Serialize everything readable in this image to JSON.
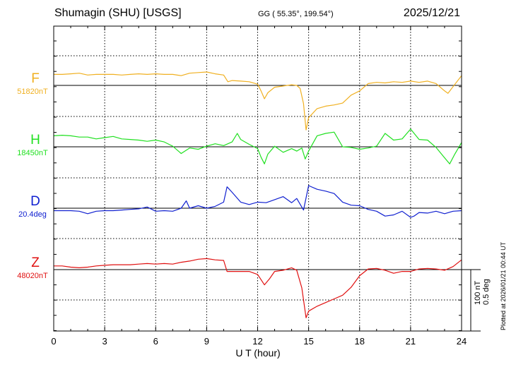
{
  "header": {
    "station": "Shumagin (SHU)  [USGS]",
    "coords": "GG ( 55.35°, 199.54°)",
    "date": "2025/12/21"
  },
  "side_text": {
    "scale_nt": "100 nT",
    "scale_deg": "0.5 deg",
    "plotted": "Plotted at 2026/01/21 00:44 UT"
  },
  "chart_data": {
    "type": "line",
    "title": "Shumagin (SHU)  [USGS]",
    "xlabel": "U T (hour)",
    "xlim": [
      0,
      24
    ],
    "xticks": [
      0,
      3,
      6,
      9,
      12,
      15,
      18,
      21,
      24
    ],
    "grid": true,
    "series": [
      {
        "name": "F",
        "baseline_label": "51820nT",
        "color": "#f0b020",
        "unit_offset": "nT",
        "x": [
          0,
          0.5,
          1,
          1.5,
          2,
          2.5,
          3,
          3.5,
          4,
          4.5,
          5,
          5.5,
          6,
          6.5,
          7,
          7.5,
          8,
          8.5,
          9,
          9.5,
          10,
          10.25,
          10.5,
          11,
          11.5,
          12,
          12.2,
          12.4,
          12.6,
          13,
          13.5,
          14,
          14.3,
          14.5,
          14.7,
          14.85,
          15,
          15.5,
          16,
          16.5,
          17,
          17.5,
          18,
          18.5,
          19,
          19.5,
          20,
          20.5,
          21,
          21.5,
          22,
          22.5,
          23,
          23.2,
          23.5,
          24
        ],
        "y": [
          18,
          18,
          19,
          20,
          17,
          18,
          18,
          18,
          17,
          18,
          19,
          18,
          19,
          18,
          18,
          16,
          20,
          21,
          22,
          19,
          17,
          6,
          8,
          7,
          6,
          2,
          -9,
          -22,
          -12,
          -3,
          -1,
          1,
          0,
          -5,
          -30,
          -73,
          -53,
          -38,
          -34,
          -32,
          -29,
          -16,
          -9,
          3,
          5,
          4,
          6,
          5,
          7,
          5,
          7,
          3,
          -9,
          -13,
          -2,
          16
        ]
      },
      {
        "name": "H",
        "baseline_label": "18450nT",
        "color": "#20e020",
        "unit_offset": "nT",
        "x": [
          0,
          0.5,
          1,
          1.5,
          2,
          2.5,
          3,
          3.5,
          4,
          4.5,
          5,
          5.5,
          6,
          6.5,
          7,
          7.5,
          8,
          8.5,
          9,
          9.5,
          10,
          10.5,
          10.8,
          11,
          11.5,
          12,
          12.2,
          12.4,
          12.6,
          13,
          13.5,
          14,
          14.3,
          14.6,
          14.8,
          15,
          15.5,
          16,
          16.5,
          17,
          17.5,
          18,
          18.5,
          19,
          19.5,
          20,
          20.5,
          21,
          21.5,
          22,
          22.5,
          23,
          23.3,
          23.6,
          24
        ],
        "y": [
          18,
          19,
          18,
          16,
          16,
          13,
          15,
          17,
          13,
          12,
          11,
          9,
          11,
          8,
          1,
          -11,
          -2,
          -4,
          1,
          5,
          2,
          8,
          22,
          12,
          4,
          -3,
          -17,
          -28,
          -12,
          1,
          -9,
          -3,
          -7,
          -2,
          -20,
          -7,
          18,
          22,
          24,
          0,
          -1,
          -4,
          -2,
          1,
          22,
          11,
          13,
          29,
          12,
          11,
          -1,
          -18,
          -28,
          -12,
          7
        ]
      },
      {
        "name": "D",
        "baseline_label": "20.4deg",
        "color": "#1020d0",
        "unit_offset": "nT-equivalent",
        "x": [
          0,
          0.5,
          1,
          1.5,
          2,
          2.5,
          3,
          3.5,
          4,
          4.5,
          5,
          5.5,
          6,
          6.5,
          7,
          7.5,
          7.8,
          8,
          8.5,
          9,
          9.5,
          10,
          10.2,
          10.5,
          11,
          11.5,
          12,
          12.5,
          13,
          13.5,
          14,
          14.3,
          14.7,
          15,
          15.5,
          16,
          16.5,
          17,
          17.5,
          18,
          18.5,
          19,
          19.5,
          20,
          20.5,
          21,
          21.2,
          21.5,
          22,
          22.5,
          23,
          23.5,
          24
        ],
        "y": [
          -4,
          -4,
          -4,
          -5,
          -9,
          -5,
          -4,
          -4,
          -3,
          -2,
          -1,
          2,
          -5,
          -4,
          -5,
          0,
          12,
          0,
          4,
          0,
          3,
          10,
          35,
          26,
          10,
          6,
          10,
          9,
          14,
          19,
          9,
          16,
          -3,
          37,
          31,
          28,
          24,
          10,
          5,
          4,
          -2,
          -5,
          -13,
          -11,
          -5,
          -15,
          -13,
          -7,
          -8,
          -5,
          -9,
          -5,
          -4
        ]
      },
      {
        "name": "Z",
        "baseline_label": "48020nT",
        "color": "#e01010",
        "unit_offset": "nT",
        "x": [
          0,
          0.5,
          1,
          1.5,
          2,
          2.5,
          3,
          3.5,
          4,
          4.5,
          5,
          5.5,
          6,
          6.5,
          7,
          7.5,
          8,
          8.5,
          9,
          9.5,
          10,
          10.2,
          10.5,
          11,
          11.5,
          12,
          12.4,
          12.7,
          13,
          13.5,
          14,
          14.3,
          14.6,
          14.85,
          15,
          15.5,
          16,
          16.5,
          17,
          17.5,
          18,
          18.5,
          19,
          19.5,
          20,
          20.5,
          21,
          21.5,
          22,
          22.5,
          23,
          23.5,
          24
        ],
        "y": [
          6,
          6,
          4,
          3,
          4,
          6,
          7,
          8,
          8,
          8,
          9,
          10,
          9,
          10,
          9,
          12,
          14,
          17,
          18,
          16,
          15,
          -3,
          -3,
          -3,
          -3,
          -8,
          -25,
          -15,
          -3,
          -1,
          3,
          -1,
          -30,
          -79,
          -68,
          -60,
          -54,
          -48,
          -42,
          -29,
          -10,
          1,
          2,
          -1,
          -6,
          -3,
          -3,
          1,
          2,
          1,
          -1,
          5,
          16
        ]
      }
    ]
  }
}
